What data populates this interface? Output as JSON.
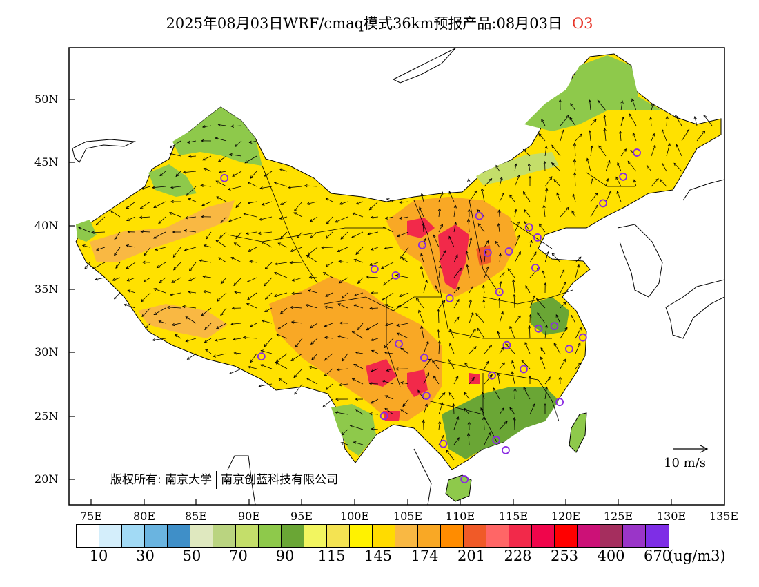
{
  "title": {
    "text": "2025年08月03日WRF/cmaq模式36km预报产品:08月03日",
    "species": "O3"
  },
  "map": {
    "lat_labels": [
      "50N",
      "45N",
      "40N",
      "35N",
      "30N",
      "25N",
      "20N"
    ],
    "lon_labels": [
      "75E",
      "80E",
      "85E",
      "90E",
      "95E",
      "100E",
      "105E",
      "110E",
      "115E",
      "120E",
      "125E",
      "130E",
      "135E"
    ],
    "copyright_prefix": "版权所有:",
    "copyright_org1": "南京大学",
    "copyright_org2": "南京创蓝科技有限公司",
    "wind_reference": "10 m/s"
  },
  "colorbar": {
    "colors": [
      "#ffffff",
      "#d4eefb",
      "#a2daf5",
      "#6ab4e0",
      "#3f8fc8",
      "#dfe8bf",
      "#bad480",
      "#c4de6a",
      "#8ec94b",
      "#6aa635",
      "#f2f560",
      "#f4e352",
      "#fff200",
      "#ffdb00",
      "#f9b843",
      "#f9a825",
      "#ff8c00",
      "#f05a28",
      "#ff6666",
      "#f2294a",
      "#f0054b",
      "#ff0000",
      "#cc1177",
      "#a52e5e",
      "#9a35c8",
      "#7e2ee6"
    ],
    "tick_labels": [
      "10",
      "30",
      "50",
      "70",
      "90",
      "115",
      "145",
      "174",
      "201",
      "228",
      "253",
      "400",
      "670"
    ],
    "unit": "(ug/m3)"
  },
  "stations": [
    [
      87.6,
      43.8
    ],
    [
      91.1,
      29.7
    ],
    [
      101.8,
      36.6
    ],
    [
      103.8,
      36.1
    ],
    [
      106.3,
      38.5
    ],
    [
      108.9,
      34.3
    ],
    [
      111.7,
      40.8
    ],
    [
      112.5,
      37.9
    ],
    [
      114.5,
      38.0
    ],
    [
      116.4,
      39.9
    ],
    [
      117.2,
      39.1
    ],
    [
      113.6,
      34.8
    ],
    [
      117.0,
      36.7
    ],
    [
      104.1,
      30.7
    ],
    [
      106.5,
      29.6
    ],
    [
      106.7,
      26.6
    ],
    [
      102.7,
      25.0
    ],
    [
      108.3,
      22.8
    ],
    [
      110.3,
      20.0
    ],
    [
      113.3,
      23.1
    ],
    [
      112.9,
      28.2
    ],
    [
      114.3,
      30.6
    ],
    [
      115.9,
      28.7
    ],
    [
      117.3,
      31.9
    ],
    [
      118.8,
      32.1
    ],
    [
      120.2,
      30.3
    ],
    [
      121.5,
      31.2
    ],
    [
      119.3,
      26.1
    ],
    [
      123.4,
      41.8
    ],
    [
      125.3,
      43.9
    ],
    [
      126.6,
      45.8
    ],
    [
      114.2,
      22.3
    ]
  ]
}
